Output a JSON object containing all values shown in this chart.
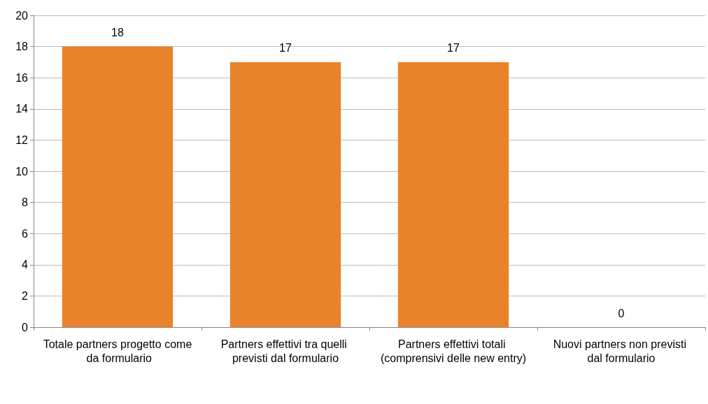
{
  "chart_data": {
    "type": "bar",
    "categories": [
      "Totale partners progetto come da formulario",
      "Partners effettivi tra quelli previsti dal formulario",
      "Partners effettivi totali (comprensivi delle new entry)",
      "Nuovi partners non previsti dal formulario"
    ],
    "values": [
      18,
      17,
      17,
      0
    ],
    "color": "#e8832c",
    "ylim": [
      0,
      20
    ],
    "yticks": [
      0,
      2,
      4,
      6,
      8,
      10,
      12,
      14,
      16,
      18,
      20
    ],
    "grid": "y",
    "data_labels": true
  }
}
